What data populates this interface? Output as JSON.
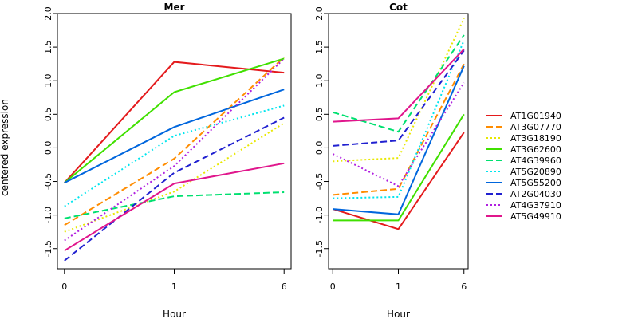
{
  "chart_data": {
    "type": "line",
    "ylabel": "centered expression",
    "xlabel": "Hour",
    "x": [
      "0",
      "1",
      "6"
    ],
    "yticks": [
      "-1.5",
      "-1.0",
      "-0.5",
      "0.0",
      "0.5",
      "1.0",
      "1.5",
      "2.0"
    ],
    "ylim": [
      -1.8,
      2.0
    ],
    "legend_position": "right",
    "grid": false,
    "series_meta": [
      {
        "name": "AT1G01940",
        "color": "#E41A1C",
        "style": "solid"
      },
      {
        "name": "AT3G07770",
        "color": "#FF8C00",
        "style": "dashed"
      },
      {
        "name": "AT3G18190",
        "color": "#E8E800",
        "style": "dotted"
      },
      {
        "name": "AT3G62600",
        "color": "#40E000",
        "style": "solid"
      },
      {
        "name": "AT4G39960",
        "color": "#00E070",
        "style": "dashed"
      },
      {
        "name": "AT5G20890",
        "color": "#00E5EE",
        "style": "dotted"
      },
      {
        "name": "AT5G55200",
        "color": "#0066DD",
        "style": "solid"
      },
      {
        "name": "AT2G04030",
        "color": "#2020D0",
        "style": "dashed"
      },
      {
        "name": "AT4G37910",
        "color": "#B020E0",
        "style": "dotted"
      },
      {
        "name": "AT5G49910",
        "color": "#E0168C",
        "style": "solid"
      }
    ],
    "panels": [
      {
        "title": "Mer",
        "values": [
          [
            -0.52,
            1.28,
            1.12
          ],
          [
            -1.15,
            -0.16,
            1.35
          ],
          [
            -1.25,
            -0.65,
            0.37
          ],
          [
            -0.52,
            0.83,
            1.33
          ],
          [
            -1.05,
            -0.72,
            -0.66
          ],
          [
            -0.87,
            0.18,
            0.63
          ],
          [
            -0.52,
            0.31,
            0.87
          ],
          [
            -1.68,
            -0.37,
            0.45
          ],
          [
            -1.38,
            -0.27,
            1.33
          ],
          [
            -1.53,
            -0.53,
            -0.23
          ]
        ]
      },
      {
        "title": "Cot",
        "values": [
          [
            -0.91,
            -1.21,
            0.23
          ],
          [
            -0.7,
            -0.61,
            1.25
          ],
          [
            -0.2,
            -0.15,
            1.93
          ],
          [
            -1.08,
            -1.08,
            0.5
          ],
          [
            0.53,
            0.24,
            1.68
          ],
          [
            -0.75,
            -0.73,
            1.6
          ],
          [
            -0.91,
            -0.99,
            1.22
          ],
          [
            0.03,
            0.11,
            1.45
          ],
          [
            -0.09,
            -0.57,
            0.97
          ],
          [
            0.39,
            0.44,
            1.47
          ]
        ]
      }
    ]
  }
}
